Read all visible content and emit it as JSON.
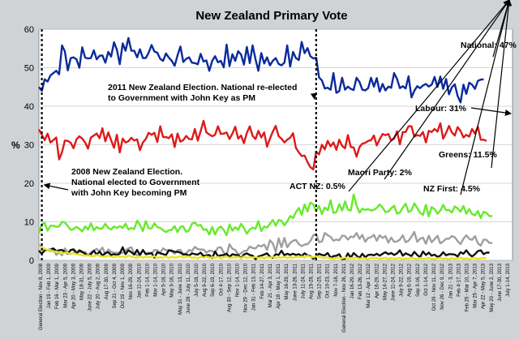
{
  "chart_data": {
    "type": "line",
    "title": "New Zealand Primary Vote",
    "xlabel": "",
    "ylabel": "%",
    "ylim": [
      0,
      60
    ],
    "yticks": [
      0,
      10,
      20,
      30,
      40,
      50,
      60
    ],
    "grid": true,
    "poll_count": 165,
    "event_indices": [
      1,
      96
    ],
    "x_tick_labels": [
      "General Election - Nov 8, 2008",
      "Jan 19 - Feb 1, 2009",
      "Feb 16 - Mar 1, 2009",
      "Mar 23 - Apr 5, 2009",
      "Apr 20 - May 3, 2009",
      "May 18-31, 2009",
      "June 22 - July 5, 2009",
      "July 20 - Aug 2, 2009",
      "Aug 17-30, 2009",
      "Sep 21 - Oct 4, 2009",
      "Oct 19 - Nov 1, 2009",
      "Nov 16-29, 2009",
      "Jan 11-24, 2010",
      "Feb 1-14, 2010",
      "Mar 1-14, 2010",
      "Apr 5-18, 2010",
      "May 3-16, 2010",
      "May 31 - June 13, 2010",
      "June 28 - July 11, 2010",
      "July 5-18, 2010",
      "Aug 9-22, 2010",
      "Sep 6-19, 2010",
      "Oct 4-17, 2010",
      "Aug 30 - Sep 12, 2010",
      "Nov 1-14, 2010",
      "Nov 29 - Dec 12, 2010",
      "Jan 31 - Feb 13, 2011",
      "Feb 14-27, 2011",
      "Mar 21 - Apr 3, 2011",
      "Apr 18 - May 1, 2011",
      "May 16-29, 2011",
      "June 13-26, 2011",
      "July 11-24, 2011",
      "Aug 15-28, 2011",
      "Sep 12-25, 2011",
      "Oct 10-23, 2011",
      "Nov 7-18, 2011",
      "General Election - Nov 26, 2011",
      "Jan 16-29, 2012",
      "Feb 13-26, 2012",
      "Mar 12 - Apr 1, 2012",
      "Apr 16-29, 2012",
      "May 14-27, 2012",
      "June 11-24, 2012",
      "July 9-22, 2012",
      "Aug 6-19, 2012",
      "Sep 3-16, 2012",
      "Oct 1-14, 2012",
      "Oct 29 - Nov 11, 2012",
      "Nov 26 - Dec 9, 2012",
      "Jan 21 - 3, 2013",
      "Feb 4-17, 2013",
      "Feb 25 - Mar 10, 2013",
      "Mar 25 - Apr 7, 2013",
      "Apr 22 - May 5, 2013",
      "May 20 - June 2, 2013",
      "June 17-30, 2013",
      "July 1-14, 2013"
    ],
    "series": [
      {
        "name": "National",
        "color": "#0a2a9c",
        "values": [
          45.0,
          44.0,
          47.0,
          46.4,
          48.0,
          48.6,
          49.2,
          48.3,
          55.8,
          54.2,
          49.3,
          52.5,
          52.7,
          52.2,
          50.0,
          55.3,
          52.6,
          52.4,
          52.5,
          54.5,
          52.2,
          53.1,
          53.2,
          51.3,
          54.1,
          52.9,
          56.6,
          54.7,
          50.9,
          56.3,
          54.4,
          57.7,
          54.4,
          54.4,
          52.7,
          54.8,
          52.5,
          52.5,
          53.9,
          55.9,
          54.2,
          53.9,
          52.3,
          51.8,
          53.7,
          52.6,
          51.8,
          50.5,
          53.2,
          55.5,
          51.5,
          52.3,
          52.7,
          51.3,
          51.2,
          50.9,
          53.6,
          51.6,
          51.9,
          49.2,
          51.8,
          53.0,
          51.4,
          51.8,
          50.1,
          56.0,
          50.4,
          53.5,
          51.8,
          54.3,
          53.4,
          50.8,
          55.4,
          51.2,
          55.8,
          52.2,
          49.2,
          53.8,
          51.1,
          52.7,
          50.6,
          51.8,
          52.5,
          51.0,
          50.6,
          51.3,
          55.8,
          50.3,
          54.1,
          52.5,
          52.0,
          56.7,
          53.8,
          55.1,
          53.0,
          52.4,
          52.6,
          47.5,
          46.7,
          44.6,
          44.8,
          44.3,
          48.6,
          43.5,
          43.9,
          47.4,
          44.3,
          45.1,
          44.5,
          44.2,
          47.4,
          46.3,
          44.3,
          44.1,
          44.7,
          47.4,
          45.1,
          47.3,
          43.8,
          45.8,
          44.1,
          45.1,
          44.8,
          48.6,
          47.1,
          44.7,
          45.2,
          44.6,
          47.8,
          42.3,
          44.0,
          45.2,
          44.7,
          45.4,
          45.8,
          45.1,
          45.6,
          47.6,
          45.0,
          47.7,
          44.5,
          47.1,
          43.1,
          44.9,
          45.7,
          42.7,
          41.0,
          45.6,
          43.2,
          46.1,
          45.6,
          44.5,
          46.6,
          46.9,
          47.0
        ]
      },
      {
        "name": "Labour",
        "color": "#dd1a1a",
        "values": [
          34.0,
          32.6,
          31.2,
          32.9,
          30.6,
          31.2,
          31.9,
          26.2,
          28.1,
          31.1,
          31.0,
          30.5,
          29.1,
          31.4,
          32.2,
          31.6,
          30.6,
          29.0,
          31.9,
          32.4,
          32.9,
          31.7,
          34.3,
          30.9,
          33.2,
          31.2,
          29.2,
          32.6,
          28.0,
          31.6,
          30.6,
          30.9,
          31.8,
          31.1,
          31.4,
          28.6,
          30.6,
          31.5,
          33.1,
          32.6,
          33.1,
          30.7,
          34.8,
          32.0,
          32.0,
          31.7,
          32.7,
          29.4,
          32.9,
          30.8,
          31.2,
          32.3,
          31.5,
          31.4,
          34.1,
          31.1,
          33.5,
          36.2,
          33.2,
          32.7,
          32.2,
          32.6,
          34.8,
          32.8,
          32.9,
          33.2,
          31.5,
          32.9,
          34.7,
          31.6,
          32.4,
          30.4,
          33.1,
          34.8,
          32.3,
          31.5,
          33.6,
          31.9,
          33.2,
          29.5,
          31.6,
          33.4,
          34.9,
          32.2,
          31.6,
          30.6,
          31.3,
          31.8,
          33.0,
          29.2,
          28.0,
          27.1,
          27.2,
          25.5,
          24.2,
          23.6,
          28.2,
          27.5,
          30.0,
          28.8,
          31.0,
          29.6,
          30.6,
          28.7,
          31.3,
          29.7,
          29.1,
          32.5,
          29.4,
          29.3,
          26.9,
          29.4,
          30.3,
          30.5,
          31.0,
          31.2,
          32.4,
          29.8,
          31.4,
          32.8,
          32.5,
          32.8,
          31.1,
          31.6,
          33.5,
          30.1,
          33.3,
          33.3,
          34.8,
          34.8,
          32.1,
          32.5,
          32.3,
          33.3,
          30.6,
          33.6,
          33.3,
          34.1,
          33.4,
          35.6,
          31.6,
          33.1,
          34.9,
          33.2,
          32.4,
          34.6,
          33.6,
          31.9,
          32.6,
          32.1,
          34.1,
          32.9,
          34.7,
          31.3,
          31.3,
          31.0
        ]
      },
      {
        "name": "Greens",
        "color": "#66ea2a",
        "values": [
          7.0,
          9.4,
          9.7,
          7.7,
          9.0,
          9.0,
          8.7,
          8.8,
          10.0,
          9.8,
          8.9,
          7.9,
          8.1,
          8.7,
          8.2,
          7.5,
          8.8,
          8.0,
          9.6,
          7.8,
          8.6,
          8.2,
          8.3,
          9.5,
          8.4,
          8.0,
          8.8,
          8.4,
          8.9,
          8.4,
          9.5,
          8.0,
          8.4,
          8.1,
          10.3,
          9.2,
          7.6,
          10.2,
          8.3,
          8.3,
          9.6,
          8.6,
          8.4,
          7.8,
          7.3,
          7.8,
          7.9,
          8.9,
          7.3,
          8.7,
          8.8,
          7.4,
          7.8,
          9.5,
          9.8,
          9.0,
          9.2,
          7.9,
          8.1,
          6.7,
          8.7,
          6.7,
          8.3,
          8.8,
          7.9,
          6.5,
          9.3,
          7.7,
          8.6,
          7.9,
          9.5,
          8.4,
          6.9,
          8.0,
          8.5,
          8.2,
          10.2,
          7.6,
          8.8,
          8.5,
          9.5,
          10.5,
          9.0,
          10.5,
          10.3,
          9.1,
          10.1,
          11.5,
          11.0,
          12.5,
          13.6,
          11.8,
          14.5,
          12.7,
          15.0,
          14.5,
          12.8,
          14.1,
          12.0,
          13.7,
          13.0,
          15.6,
          12.3,
          12.5,
          14.6,
          12.9,
          15.3,
          13.2,
          12.9,
          17.1,
          14.2,
          12.4,
          13.4,
          13.1,
          13.3,
          12.9,
          13.1,
          13.6,
          14.5,
          13.7,
          12.5,
          12.7,
          13.5,
          14.2,
          12.1,
          12.4,
          13.7,
          14.7,
          12.5,
          13.0,
          14.8,
          13.6,
          12.3,
          11.8,
          14.4,
          11.4,
          13.8,
          13.3,
          12.1,
          12.9,
          14.4,
          13.0,
          13.1,
          12.4,
          14.0,
          13.5,
          12.6,
          14.1,
          12.1,
          13.3,
          12.0,
          11.7,
          12.8,
          11.0,
          12.6,
          12.3,
          11.5,
          11.5
        ]
      },
      {
        "name": "NZ First",
        "color": "#9e9e9e",
        "values": [
          4.0,
          3.5,
          2.8,
          2.7,
          2.4,
          2.9,
          1.4,
          2.1,
          1.3,
          3.1,
          2.0,
          2.6,
          3.0,
          2.3,
          2.2,
          2.1,
          2.2,
          1.3,
          2.1,
          2.5,
          3.0,
          2.4,
          3.3,
          1.6,
          2.8,
          2.2,
          2.0,
          1.9,
          2.2,
          1.9,
          2.6,
          3.1,
          3.4,
          1.9,
          1.3,
          1.7,
          2.5,
          1.8,
          2.0,
          1.7,
          2.7,
          2.6,
          2.0,
          3.1,
          2.6,
          2.6,
          2.3,
          1.7,
          2.6,
          2.7,
          1.6,
          1.8,
          2.7,
          2.4,
          3.5,
          2.9,
          2.8,
          2.8,
          2.0,
          2.5,
          2.4,
          2.0,
          3.3,
          3.4,
          2.0,
          1.4,
          4.2,
          3.0,
          2.7,
          1.5,
          1.8,
          2.4,
          2.5,
          3.6,
          3.2,
          3.1,
          3.9,
          3.6,
          4.1,
          2.7,
          5.2,
          4.4,
          2.2,
          5.7,
          3.4,
          5.8,
          3.4,
          4.5,
          5.1,
          5.3,
          4.2,
          3.7,
          4.1,
          4.2,
          5.0,
          6.5,
          6.8,
          4.7,
          4.9,
          7.1,
          6.5,
          6.1,
          5.1,
          5.4,
          5.2,
          6.4,
          6.3,
          5.4,
          6.2,
          6.0,
          7.1,
          5.6,
          6.6,
          4.8,
          5.8,
          6.0,
          6.6,
          5.1,
          6.5,
          5.8,
          6.3,
          4.6,
          5.9,
          4.8,
          4.9,
          5.4,
          6.5,
          4.7,
          5.1,
          6.1,
          7.4,
          4.8,
          5.6,
          5.9,
          4.3,
          6.4,
          4.7,
          5.5,
          6.4,
          4.4,
          4.9,
          5.6,
          5.6,
          6.3,
          6.0,
          5.0,
          4.2,
          5.6,
          6.5,
          5.6,
          5.3,
          6.3,
          4.4,
          3.8,
          5.4,
          5.3,
          4.5,
          4.5
        ]
      },
      {
        "name": "Maori Party",
        "color": "#101010",
        "values": [
          2.5,
          1.7,
          2.6,
          2.7,
          2.8,
          3.1,
          2.4,
          2.6,
          2.7,
          2.2,
          1.7,
          2.7,
          2.8,
          1.7,
          2.6,
          2.2,
          1.7,
          1.3,
          1.6,
          2.5,
          1.5,
          2.3,
          1.2,
          1.9,
          2.1,
          1.4,
          1.6,
          1.4,
          1.7,
          3.4,
          1.6,
          2.6,
          2.1,
          1.5,
          2.7,
          1.3,
          2.7,
          1.6,
          1.7,
          1.9,
          0.7,
          2.1,
          1.8,
          1.6,
          1.4,
          2.6,
          2.5,
          2.2,
          2.2,
          2.0,
          1.5,
          1.6,
          1.2,
          1.8,
          1.6,
          1.5,
          2.0,
          1.1,
          1.3,
          1.4,
          0.6,
          2.3,
          1.1,
          1.3,
          1.4,
          1.7,
          0.9,
          1.6,
          1.4,
          1.4,
          0.5,
          1.5,
          1.8,
          1.4,
          1.2,
          0.3,
          1.0,
          1.2,
          1.5,
          1.8,
          0.9,
          0.7,
          1.6,
          1.4,
          2.5,
          1.3,
          1.7,
          1.4,
          1.7,
          1.4,
          1.6,
          1.1,
          1.8,
          1.3,
          1.1,
          0.4,
          1.0,
          1.7,
          1.4,
          1.3,
          1.9,
          0.7,
          1.1,
          1.2,
          1.6,
          0.3,
          0.4,
          1.8,
          0.7,
          1.9,
          1.2,
          0.6,
          1.7,
          0.8,
          1.4,
          1.5,
          1.3,
          1.7,
          1.2,
          1.7,
          2.1,
          1.6,
          1.9,
          1.4,
          1.8,
          2.6,
          1.2,
          1.8,
          1.5,
          1.1,
          2.2,
          1.4,
          0.8,
          2.3,
          1.4,
          2.0,
          1.2,
          1.5,
          0.9,
          1.2,
          2.1,
          1.3,
          1.6,
          1.6,
          1.5,
          1.0,
          2.1,
          1.7,
          2.6,
          1.6,
          1.0,
          1.6,
          2.4,
          2.6,
          1.6,
          2.0,
          2.0
        ]
      },
      {
        "name": "ACT NZ",
        "color": "#e6e31f",
        "values": [
          3.6,
          3.3,
          3.0,
          2.7,
          2.7,
          2.2,
          2.3,
          2.1,
          1.8,
          2.0,
          1.9,
          1.6,
          1.9,
          1.6,
          1.5,
          1.3,
          1.2,
          1.4,
          1.1,
          1.1,
          1.4,
          1.1,
          1.0,
          0.9,
          1.2,
          0.9,
          0.8,
          1.1,
          0.9,
          1.0,
          0.7,
          1.3,
          0.9,
          0.8,
          0.6,
          1.0,
          0.7,
          0.9,
          0.8,
          0.9,
          1.1,
          0.6,
          0.8,
          0.7,
          1.0,
          0.6,
          0.9,
          0.7,
          0.8,
          1.1,
          0.7,
          0.9,
          1.0,
          0.6,
          0.8,
          0.5,
          0.9,
          0.7,
          1.0,
          0.6,
          0.8,
          0.7,
          0.9,
          0.5,
          0.8,
          1.0,
          0.6,
          0.8,
          0.7,
          0.9,
          0.5,
          1.0,
          0.6,
          0.8,
          0.7,
          0.9,
          0.6,
          0.8,
          0.5,
          0.9,
          0.7,
          1.0,
          0.6,
          0.8,
          0.7,
          0.9,
          0.6,
          0.8,
          0.7,
          0.9,
          0.8,
          1.0,
          0.7,
          1.2,
          0.9,
          0.8,
          1.1,
          0.9,
          0.7,
          0.6,
          0.8,
          0.5,
          0.4,
          0.7,
          0.6,
          0.5,
          0.8,
          0.4,
          0.6,
          0.5,
          0.7,
          0.4,
          0.6,
          0.5,
          0.3,
          0.7,
          0.5,
          0.6,
          0.4,
          0.5,
          0.7,
          0.3,
          0.6,
          0.4,
          0.5,
          0.6,
          0.3,
          0.5,
          0.4,
          0.7,
          0.5,
          0.3,
          0.6,
          0.4,
          0.5,
          0.6,
          0.4,
          0.3,
          0.5,
          0.6,
          0.4,
          0.5,
          0.3,
          0.6,
          0.4,
          0.5,
          0.7,
          0.4,
          0.5,
          0.3,
          0.6,
          0.5,
          0.4,
          0.5,
          0.6,
          0.5
        ]
      }
    ],
    "annotations": [
      {
        "lines": [
          "2011 New Zealand Election. National re-elected",
          "to Government with John Key as PM"
        ]
      },
      {
        "lines": [
          "2008 New Zealand Election.",
          "National elected to Government",
          "with John Key becoming PM"
        ]
      },
      {
        "lines": [
          "National: 47%"
        ]
      },
      {
        "lines": [
          "Labour: 31%"
        ]
      },
      {
        "lines": [
          "Greens: 11.5%"
        ]
      },
      {
        "lines": [
          "Maori Party: 2%"
        ]
      },
      {
        "lines": [
          "NZ First: 4.5%"
        ]
      },
      {
        "lines": [
          "ACT NZ: 0.5%"
        ]
      }
    ]
  }
}
